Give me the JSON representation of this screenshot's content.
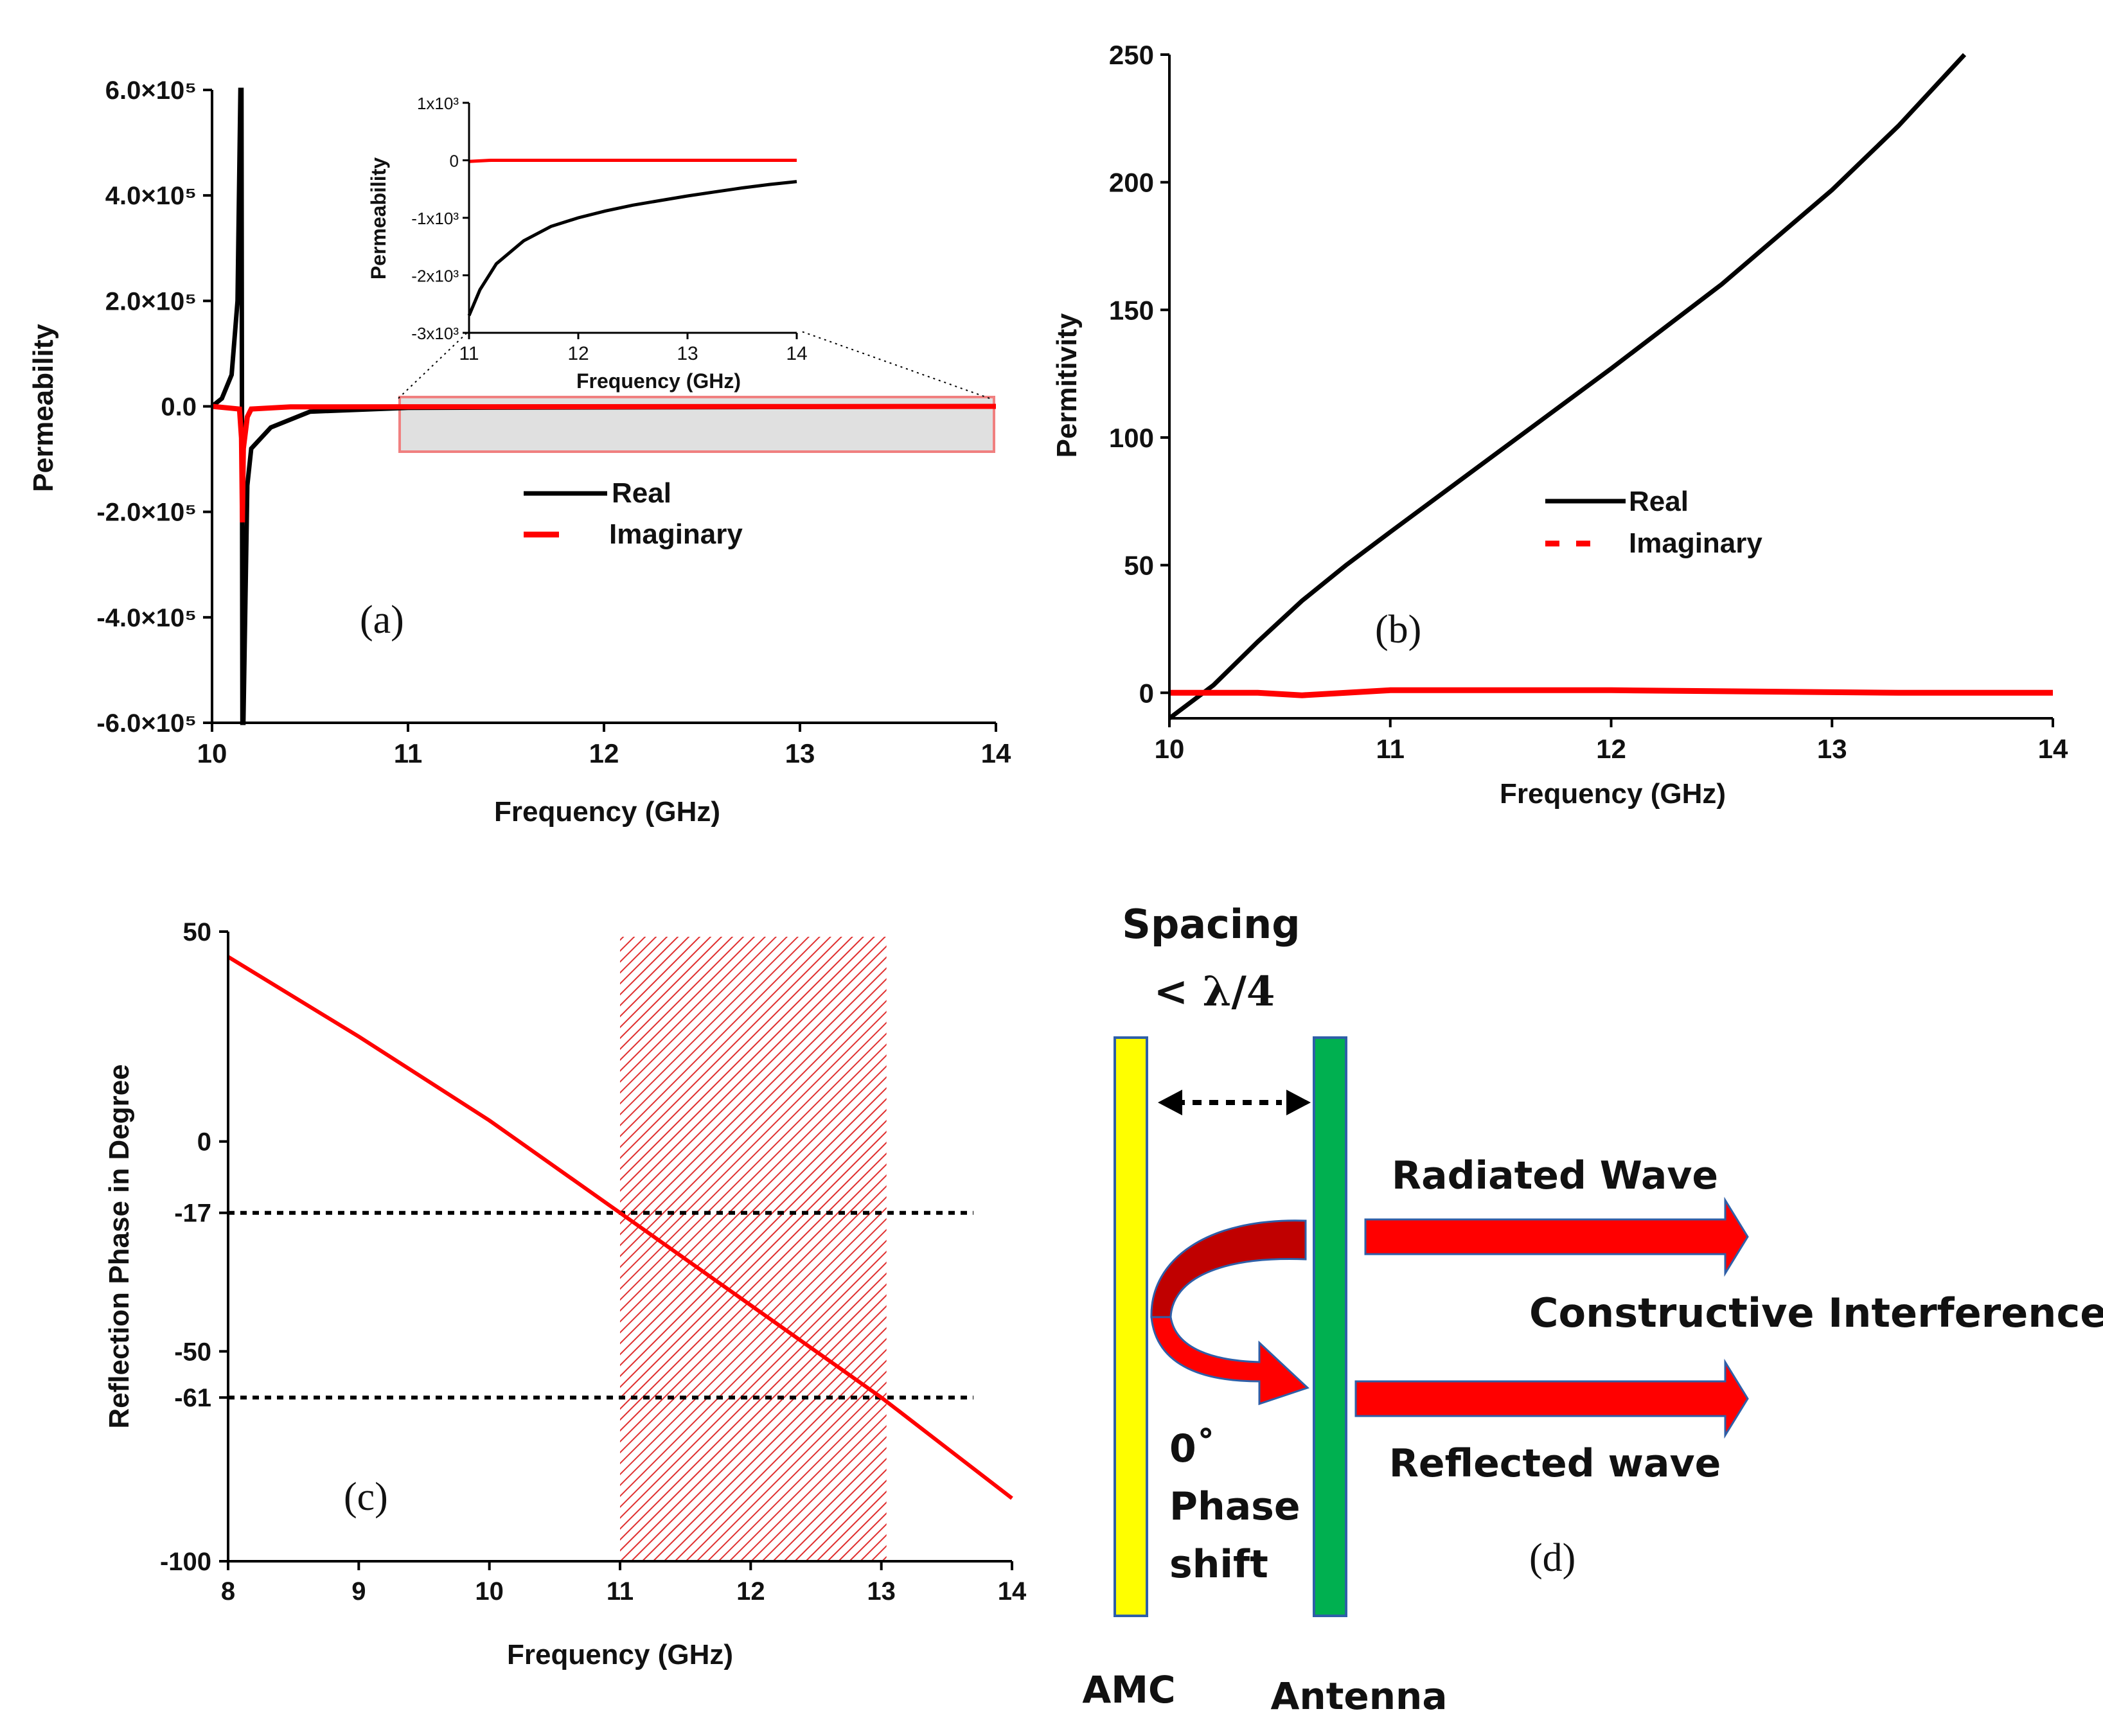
{
  "colors": {
    "real": "#000000",
    "imaginary": "#ff0000",
    "amc": "#ffff00",
    "antenna": "#00b050",
    "arrow": "#ff0000"
  },
  "chart_data": [
    {
      "panel": "(a)",
      "type": "line",
      "xlabel": "Frequency (GHz)",
      "ylabel": "Permeability",
      "xlim": [
        10,
        14
      ],
      "ylim": [
        -600000,
        600000
      ],
      "xticks": [
        "10",
        "11",
        "12",
        "13",
        "14"
      ],
      "yticks": [
        "6.0×10⁵",
        "4.0×10⁵",
        "2.0×10⁵",
        "0.0",
        "-2.0×10⁵",
        "-4.0×10⁵",
        "-6.0×10⁵"
      ],
      "ytick_values": [
        600000,
        400000,
        200000,
        0,
        -200000,
        -400000,
        -600000
      ],
      "legend": [
        "Real",
        "Imaginary"
      ],
      "series": [
        {
          "name": "Real",
          "x": [
            10.0,
            10.05,
            10.1,
            10.13,
            10.145,
            10.15,
            10.155,
            10.16,
            10.18,
            10.2,
            10.3,
            10.5,
            11,
            14
          ],
          "y": [
            0,
            15000,
            60000,
            200000,
            600000,
            600000,
            -600000,
            -600000,
            -150000,
            -80000,
            -40000,
            -10000,
            -2700,
            -300
          ]
        },
        {
          "name": "Imaginary",
          "x": [
            10.0,
            10.14,
            10.15,
            10.155,
            10.16,
            10.18,
            10.2,
            10.4,
            14
          ],
          "y": [
            0,
            -5000,
            -60000,
            -220000,
            -80000,
            -20000,
            -5000,
            -1000,
            0
          ]
        }
      ],
      "inset": {
        "xlabel": "Frequency (GHz)",
        "ylabel": "Permeability",
        "xlim": [
          11,
          14
        ],
        "ylim": [
          -3000,
          1000
        ],
        "xticks": [
          "11",
          "12",
          "13",
          "14"
        ],
        "yticks": [
          "1x10³",
          "0",
          "-1x10³",
          "-2x10³",
          "-3x10³"
        ],
        "ytick_values": [
          1000,
          0,
          -1000,
          -2000,
          -3000
        ],
        "series": [
          {
            "name": "Real",
            "x": [
              11,
              11.1,
              11.25,
              11.5,
              11.75,
              12,
              12.25,
              12.5,
              12.75,
              13,
              13.25,
              13.5,
              13.75,
              14
            ],
            "y": [
              -2700,
              -2250,
              -1800,
              -1400,
              -1150,
              -1000,
              -880,
              -780,
              -700,
              -620,
              -550,
              -480,
              -420,
              -370
            ]
          },
          {
            "name": "Imaginary",
            "x": [
              11,
              11.2,
              14
            ],
            "y": [
              -20,
              0,
              0
            ]
          }
        ]
      }
    },
    {
      "panel": "(b)",
      "type": "line",
      "xlabel": "Frequency (GHz)",
      "ylabel": "Permitivity",
      "xlim": [
        10,
        14
      ],
      "ylim": [
        -10,
        250
      ],
      "xticks": [
        "10",
        "11",
        "12",
        "13",
        "14"
      ],
      "yticks": [
        "250",
        "200",
        "150",
        "100",
        "50",
        "0"
      ],
      "ytick_values": [
        250,
        200,
        150,
        100,
        50,
        0
      ],
      "legend": [
        "Real",
        "Imaginary"
      ],
      "series": [
        {
          "name": "Real",
          "x": [
            10.0,
            10.2,
            10.4,
            10.6,
            10.8,
            11,
            11.5,
            12,
            12.5,
            13,
            13.3,
            13.6
          ],
          "y": [
            -10,
            3,
            20,
            36,
            50,
            63,
            95,
            127,
            160,
            197,
            222,
            250
          ]
        },
        {
          "name": "Imaginary",
          "x": [
            10,
            10.4,
            10.6,
            10.8,
            11,
            12,
            13.3,
            14
          ],
          "y": [
            0,
            0,
            -1,
            0,
            1,
            1,
            0,
            0
          ]
        }
      ]
    },
    {
      "panel": "(c)",
      "type": "line",
      "xlabel": "Frequency (GHz)",
      "ylabel": "Reflection Phase in Degree",
      "xlim": [
        8,
        14
      ],
      "ylim": [
        -100,
        50
      ],
      "xticks": [
        "8",
        "9",
        "10",
        "11",
        "12",
        "13",
        "14"
      ],
      "yticks": [
        "50",
        "0",
        "-17",
        "-50",
        "-61",
        "-100"
      ],
      "ytick_values": [
        50,
        0,
        -17,
        -50,
        -61,
        -100
      ],
      "band": [
        11,
        13
      ],
      "hlines": [
        -17,
        -61
      ],
      "series": [
        {
          "name": "Reflection Phase",
          "x": [
            8,
            9,
            10,
            11,
            12,
            13,
            13.5,
            14
          ],
          "y": [
            44,
            25,
            5,
            -17,
            -39,
            -61,
            -73,
            -85
          ]
        }
      ]
    }
  ],
  "panels": {
    "a": "(a)",
    "b": "(b)",
    "c": "(c)",
    "d": "(d)"
  },
  "diagram": {
    "spacing_line1": "Spacing",
    "spacing_line2": "< λ/4",
    "radiated": "Radiated Wave",
    "constructive": "Constructive Interference",
    "reflected": "Reflected wave",
    "phase_deg": "0˚",
    "phase_word": "Phase",
    "shift_word": "shift",
    "amc": "AMC",
    "antenna": "Antenna"
  }
}
